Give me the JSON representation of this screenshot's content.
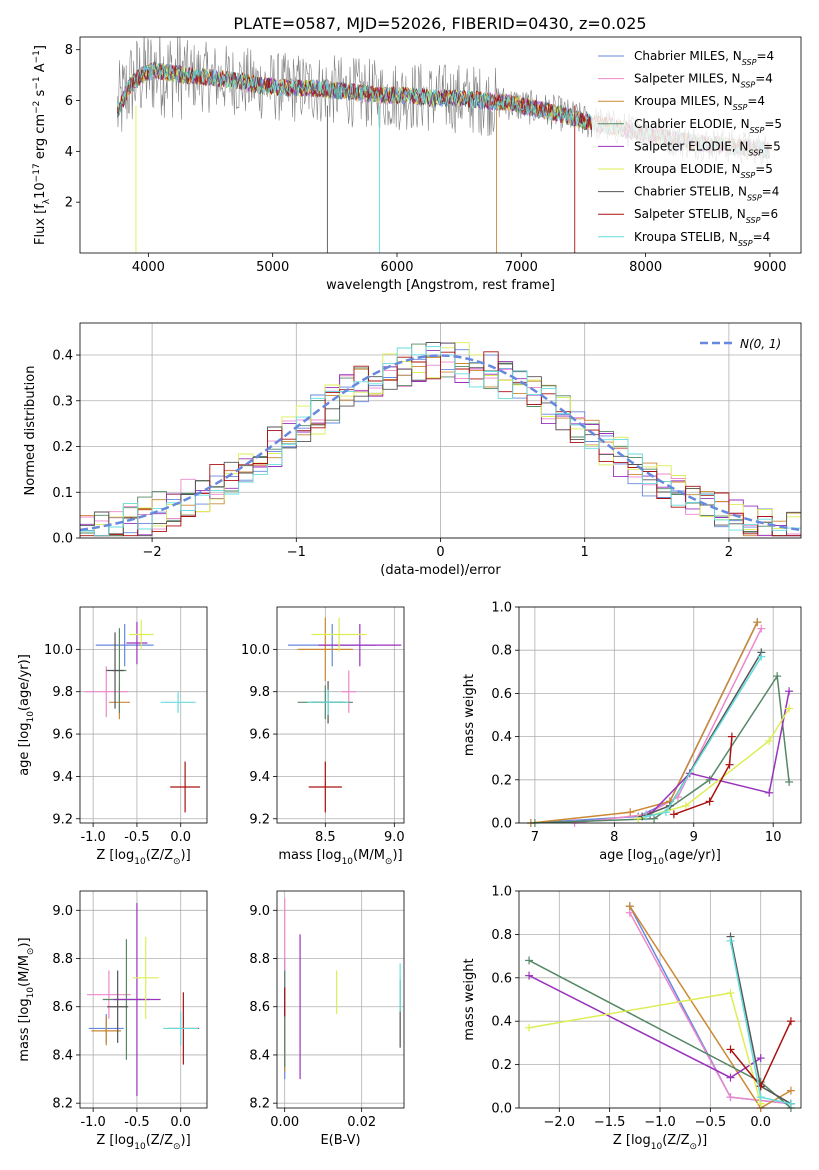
{
  "figure": {
    "title": "PLATE=0587, MJD=52026, FIBERID=0430, z=0.025"
  },
  "colors": {
    "models": [
      "#6688dd",
      "#ee88cc",
      "#cc8833",
      "#558866",
      "#9933bb",
      "#ddee55",
      "#555555",
      "#aa1111",
      "#66dddd"
    ],
    "data": "#808080",
    "gauss": "#6688dd",
    "grid": "#b0b0b0"
  },
  "chart_data": [
    {
      "id": "spectrum",
      "type": "line",
      "xlabel": "wavelength [Angstrom, rest frame]",
      "ylabel": "Flux [f_λ 10^-17 erg cm^-2 s^-1 A^-1]",
      "xlim": [
        3450,
        9250
      ],
      "ylim": [
        0,
        8.5
      ],
      "xticks": [
        4000,
        5000,
        6000,
        7000,
        8000,
        9000
      ],
      "yticks": [
        2,
        4,
        6,
        8
      ],
      "grid": false,
      "legend_position": "top-right",
      "legend": [
        {
          "label": "Chabrier MILES, N",
          "sub": "SSP",
          "suffix": "=4"
        },
        {
          "label": "Salpeter MILES, N",
          "sub": "SSP",
          "suffix": "=4"
        },
        {
          "label": "Kroupa MILES, N",
          "sub": "SSP",
          "suffix": "=4"
        },
        {
          "label": "Chabrier ELODIE, N",
          "sub": "SSP",
          "suffix": "=5"
        },
        {
          "label": "Salpeter ELODIE, N",
          "sub": "SSP",
          "suffix": "=5"
        },
        {
          "label": "Kroupa ELODIE, N",
          "sub": "SSP",
          "suffix": "=5"
        },
        {
          "label": "Chabrier STELIB, N",
          "sub": "SSP",
          "suffix": "=4"
        },
        {
          "label": "Salpeter STELIB, N",
          "sub": "SSP",
          "suffix": "=6"
        },
        {
          "label": "Kroupa STELIB, N",
          "sub": "SSP",
          "suffix": "=4"
        }
      ],
      "continuum": {
        "x": [
          3750,
          3850,
          3950,
          4050,
          4150,
          4300,
          4500,
          4700,
          4900,
          5100,
          5300,
          5500,
          5700,
          5900,
          6100,
          6300,
          6500,
          6700,
          6900,
          7100,
          7300,
          7500,
          7700,
          7900,
          8100,
          8300,
          8500,
          8700,
          8900,
          9000
        ],
        "y": [
          5.6,
          6.6,
          7.0,
          7.2,
          7.1,
          7.0,
          6.9,
          6.8,
          6.6,
          6.5,
          6.5,
          6.4,
          6.3,
          6.2,
          6.2,
          6.1,
          6.1,
          6.0,
          5.9,
          5.7,
          5.5,
          5.2,
          5.0,
          4.8,
          4.6,
          4.4,
          4.3,
          4.2,
          4.1,
          4.0
        ]
      }
    },
    {
      "id": "residuals",
      "type": "histogram",
      "xlabel": "(data-model)/error",
      "ylabel": "Normed distribution",
      "xlim": [
        -2.5,
        2.5
      ],
      "ylim": [
        0,
        0.47
      ],
      "xticks": [
        -2,
        -1,
        0,
        1,
        2
      ],
      "xtick_labels": [
        "−2",
        "−1",
        "0",
        "1",
        "2"
      ],
      "yticks": [
        0.0,
        0.1,
        0.2,
        0.3,
        0.4
      ],
      "grid": true,
      "legend_position": "top-right",
      "gaussian_label": "N(0, 1)",
      "bin_width": 0.1
    },
    {
      "id": "age_vs_Z",
      "type": "errorbar",
      "xlabel": "Z [log10(Z/Z⊙)]",
      "ylabel": "age  [log10(age/yr)]",
      "xlim": [
        -1.15,
        0.3
      ],
      "ylim": [
        9.18,
        10.2
      ],
      "xticks": [
        -1.0,
        -0.5,
        0.0
      ],
      "yticks": [
        9.2,
        9.4,
        9.6,
        9.8,
        10.0
      ],
      "grid": true,
      "points": [
        {
          "x": -0.64,
          "y": 10.02,
          "xerr": 0.33,
          "yerr": 0.1
        },
        {
          "x": -0.85,
          "y": 9.8,
          "xerr": 0.25,
          "yerr": 0.12
        },
        {
          "x": -0.7,
          "y": 9.75,
          "xerr": 0.12,
          "yerr": 0.08
        },
        {
          "x": -0.7,
          "y": 9.9,
          "xerr": 0.08,
          "yerr": 0.2
        },
        {
          "x": -0.5,
          "y": 10.03,
          "xerr": 0.12,
          "yerr": 0.1
        },
        {
          "x": -0.45,
          "y": 10.07,
          "xerr": 0.14,
          "yerr": 0.07
        },
        {
          "x": -0.75,
          "y": 9.9,
          "xerr": 0.1,
          "yerr": 0.18
        },
        {
          "x": 0.05,
          "y": 9.35,
          "xerr": 0.17,
          "yerr": 0.12
        },
        {
          "x": -0.03,
          "y": 9.75,
          "xerr": 0.2,
          "yerr": 0.05
        }
      ]
    },
    {
      "id": "age_vs_mass",
      "type": "errorbar",
      "xlabel": "mass [log10(M/M⊙)]",
      "ylabel": "",
      "xlim": [
        8.15,
        9.07
      ],
      "ylim": [
        9.18,
        10.2
      ],
      "xticks": [
        8.5,
        9.0
      ],
      "yticks": [
        9.2,
        9.4,
        9.6,
        9.8,
        10.0
      ],
      "grid": true,
      "points": [
        {
          "x": 8.55,
          "y": 10.02,
          "xerr": 0.32,
          "yerr": 0.1
        },
        {
          "x": 8.67,
          "y": 9.8,
          "xerr": 0.05,
          "yerr": 0.1
        },
        {
          "x": 8.5,
          "y": 10.0,
          "xerr": 0.2,
          "yerr": 0.15
        },
        {
          "x": 8.5,
          "y": 9.75,
          "xerr": 0.2,
          "yerr": 0.08
        },
        {
          "x": 8.75,
          "y": 10.02,
          "xerr": 0.3,
          "yerr": 0.1
        },
        {
          "x": 8.6,
          "y": 10.07,
          "xerr": 0.2,
          "yerr": 0.08
        },
        {
          "x": 8.52,
          "y": 9.75,
          "xerr": 0.12,
          "yerr": 0.1
        },
        {
          "x": 8.5,
          "y": 9.35,
          "xerr": 0.12,
          "yerr": 0.12
        },
        {
          "x": 8.52,
          "y": 9.75,
          "xerr": 0.15,
          "yerr": 0.06
        }
      ]
    },
    {
      "id": "weight_vs_age",
      "type": "line",
      "xlabel": "age  [log10(age/yr)]",
      "ylabel": "mass weight",
      "xlim": [
        6.8,
        10.35
      ],
      "ylim": [
        0,
        1.0
      ],
      "xticks": [
        7,
        8,
        9,
        10
      ],
      "yticks": [
        0.0,
        0.2,
        0.4,
        0.6,
        0.8,
        1.0
      ],
      "grid": true,
      "series": [
        {
          "x": [
            6.95,
            8.3,
            8.7,
            9.8
          ],
          "y": [
            0.0,
            0.03,
            0.1,
            0.93
          ]
        },
        {
          "x": [
            7.5,
            8.4,
            8.8,
            9.85
          ],
          "y": [
            0.0,
            0.04,
            0.12,
            0.9
          ]
        },
        {
          "x": [
            6.95,
            8.2,
            8.7,
            9.8
          ],
          "y": [
            0.0,
            0.05,
            0.1,
            0.93
          ]
        },
        {
          "x": [
            7.0,
            8.5,
            9.2,
            10.05,
            10.2
          ],
          "y": [
            0.0,
            0.02,
            0.2,
            0.68,
            0.19
          ]
        },
        {
          "x": [
            8.45,
            8.95,
            9.95,
            10.2
          ],
          "y": [
            0.04,
            0.23,
            0.14,
            0.61
          ]
        },
        {
          "x": [
            8.3,
            8.9,
            9.95,
            10.2
          ],
          "y": [
            0.02,
            0.08,
            0.38,
            0.53
          ]
        },
        {
          "x": [
            8.35,
            8.7,
            9.85
          ],
          "y": [
            0.03,
            0.08,
            0.79
          ]
        },
        {
          "x": [
            8.75,
            9.2,
            9.45,
            9.48
          ],
          "y": [
            0.04,
            0.1,
            0.27,
            0.4
          ]
        },
        {
          "x": [
            8.4,
            8.65,
            9.85
          ],
          "y": [
            0.03,
            0.05,
            0.77
          ]
        }
      ]
    },
    {
      "id": "mass_vs_Z",
      "type": "errorbar",
      "xlabel": "Z [log10(Z/Z⊙)]",
      "ylabel": "mass [log10(M/M⊙)]",
      "xlim": [
        -1.15,
        0.3
      ],
      "ylim": [
        8.18,
        9.08
      ],
      "xticks": [
        -1.0,
        -0.5,
        0.0
      ],
      "yticks": [
        8.2,
        8.4,
        8.6,
        8.8,
        9.0
      ],
      "grid": true,
      "points": [
        {
          "x": -0.85,
          "y": 8.51,
          "xerr": 0.2,
          "yerr": 0.06
        },
        {
          "x": -0.82,
          "y": 8.65,
          "xerr": 0.25,
          "yerr": 0.1
        },
        {
          "x": -0.85,
          "y": 8.5,
          "xerr": 0.17,
          "yerr": 0.06
        },
        {
          "x": -0.62,
          "y": 8.63,
          "xerr": 0.27,
          "yerr": 0.25
        },
        {
          "x": -0.5,
          "y": 8.63,
          "xerr": 0.27,
          "yerr": 0.4
        },
        {
          "x": -0.4,
          "y": 8.72,
          "xerr": 0.15,
          "yerr": 0.17
        },
        {
          "x": -0.72,
          "y": 8.6,
          "xerr": 0.12,
          "yerr": 0.15
        },
        {
          "x": 0.03,
          "y": 8.51,
          "xerr": 0.18,
          "yerr": 0.15
        },
        {
          "x": 0.0,
          "y": 8.51,
          "xerr": 0.2,
          "yerr": 0.07
        }
      ]
    },
    {
      "id": "mass_vs_ebv",
      "type": "errorbar",
      "xlabel": "E(B-V)",
      "ylabel": "",
      "xlim": [
        -0.002,
        0.031
      ],
      "ylim": [
        8.18,
        9.08
      ],
      "xticks": [
        0.0,
        0.02
      ],
      "xtick_labels": [
        "0.00",
        "0.02"
      ],
      "yticks": [
        8.2,
        8.4,
        8.6,
        8.8,
        9.0
      ],
      "grid": true,
      "points": [
        {
          "x": 0.0,
          "y": 8.55,
          "xerr": 0,
          "yerr": 0.25
        },
        {
          "x": 0.0,
          "y": 8.7,
          "xerr": 0,
          "yerr": 0.35
        },
        {
          "x": 0.0,
          "y": 8.45,
          "xerr": 0,
          "yerr": 0.12
        },
        {
          "x": 0.0,
          "y": 8.55,
          "xerr": 0,
          "yerr": 0.2
        },
        {
          "x": 0.004,
          "y": 8.6,
          "xerr": 0,
          "yerr": 0.3
        },
        {
          "x": 0.0135,
          "y": 8.66,
          "xerr": 0,
          "yerr": 0.09
        },
        {
          "x": 0.03,
          "y": 8.57,
          "xerr": 0,
          "yerr": 0.14
        },
        {
          "x": 0.0,
          "y": 8.62,
          "xerr": 0,
          "yerr": 0.06
        },
        {
          "x": 0.03,
          "y": 8.68,
          "xerr": 0,
          "yerr": 0.1
        }
      ]
    },
    {
      "id": "weight_vs_Z",
      "type": "line",
      "xlabel": "Z [log10(Z/Z⊙)]",
      "ylabel": "mass weight",
      "xlim": [
        -2.4,
        0.4
      ],
      "ylim": [
        0,
        1.0
      ],
      "xticks": [
        -2.0,
        -1.5,
        -1.0,
        -0.5,
        0.0
      ],
      "xtick_labels": [
        "−2.0",
        "−1.5",
        "−1.0",
        "−0.5",
        "0.0"
      ],
      "yticks": [
        0.0,
        0.2,
        0.4,
        0.6,
        0.8,
        1.0
      ],
      "grid": true,
      "series": [
        {
          "x": [
            -1.3,
            -0.3,
            0.3
          ],
          "y": [
            0.93,
            0.05,
            0.02
          ]
        },
        {
          "x": [
            -1.3,
            -0.3,
            0.3
          ],
          "y": [
            0.9,
            0.05,
            0.02
          ]
        },
        {
          "x": [
            -1.3,
            0.0,
            0.3
          ],
          "y": [
            0.93,
            0.0,
            0.08
          ]
        },
        {
          "x": [
            -2.3,
            0.0,
            0.3
          ],
          "y": [
            0.68,
            0.12,
            0.0
          ]
        },
        {
          "x": [
            -2.3,
            -0.3,
            0.0
          ],
          "y": [
            0.61,
            0.14,
            0.23
          ]
        },
        {
          "x": [
            -2.3,
            -0.3,
            0.0
          ],
          "y": [
            0.37,
            0.53,
            0.02
          ]
        },
        {
          "x": [
            -0.3,
            0.0,
            0.3
          ],
          "y": [
            0.79,
            0.1,
            0.02
          ]
        },
        {
          "x": [
            -0.3,
            0.0,
            0.3
          ],
          "y": [
            0.27,
            0.1,
            0.4
          ]
        },
        {
          "x": [
            -0.3,
            0.0,
            0.3
          ],
          "y": [
            0.77,
            0.05,
            0.02
          ]
        }
      ]
    }
  ]
}
